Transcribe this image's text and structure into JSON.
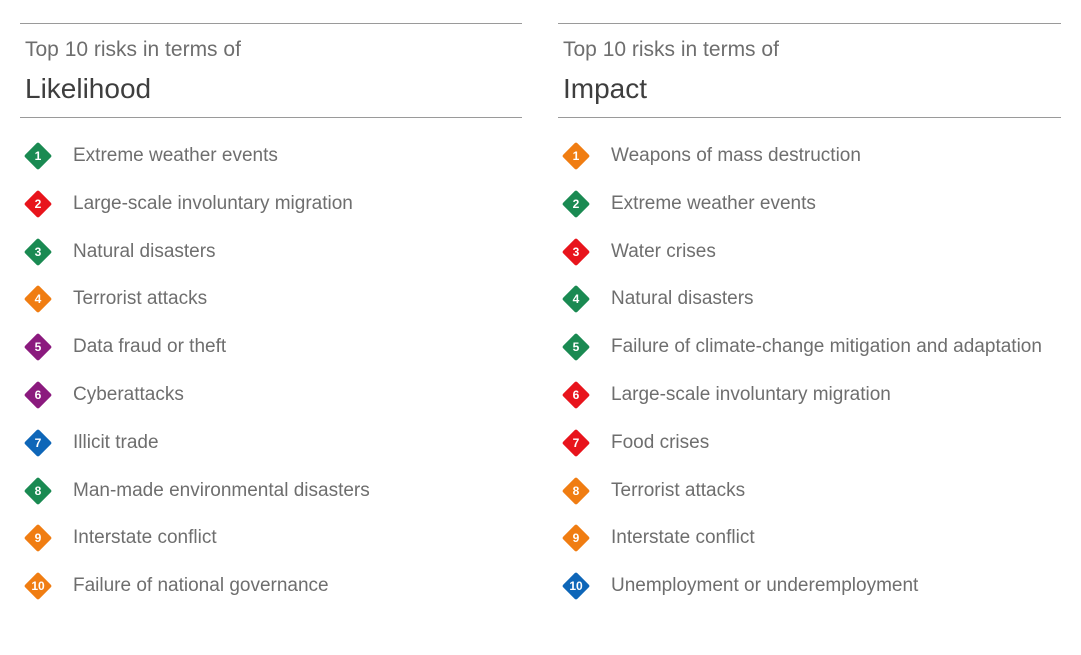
{
  "colors": {
    "green": "#1a8a52",
    "red": "#e8141c",
    "orange": "#f07d12",
    "purple": "#8b1a7e",
    "blue": "#0e66b8"
  },
  "likelihood": {
    "subtitle": "Top 10 risks in terms of",
    "title": "Likelihood",
    "items": [
      {
        "rank": "1",
        "label": "Extreme weather events",
        "color": "#1a8a52"
      },
      {
        "rank": "2",
        "label": "Large-scale involuntary migration",
        "color": "#e8141c"
      },
      {
        "rank": "3",
        "label": "Natural disasters",
        "color": "#1a8a52"
      },
      {
        "rank": "4",
        "label": "Terrorist attacks",
        "color": "#f07d12"
      },
      {
        "rank": "5",
        "label": "Data fraud or theft",
        "color": "#8b1a7e"
      },
      {
        "rank": "6",
        "label": "Cyberattacks",
        "color": "#8b1a7e"
      },
      {
        "rank": "7",
        "label": "Illicit trade",
        "color": "#0e66b8"
      },
      {
        "rank": "8",
        "label": "Man-made environmental disasters",
        "color": "#1a8a52"
      },
      {
        "rank": "9",
        "label": "Interstate conflict",
        "color": "#f07d12"
      },
      {
        "rank": "10",
        "label": "Failure of national governance",
        "color": "#f07d12"
      }
    ]
  },
  "impact": {
    "subtitle": "Top 10 risks in terms of",
    "title": "Impact",
    "items": [
      {
        "rank": "1",
        "label": "Weapons of mass destruction",
        "color": "#f07d12"
      },
      {
        "rank": "2",
        "label": "Extreme weather events",
        "color": "#1a8a52"
      },
      {
        "rank": "3",
        "label": "Water crises",
        "color": "#e8141c"
      },
      {
        "rank": "4",
        "label": "Natural disasters",
        "color": "#1a8a52"
      },
      {
        "rank": "5",
        "label": "Failure of climate-change mitigation and adaptation",
        "color": "#1a8a52"
      },
      {
        "rank": "6",
        "label": "Large-scale involuntary migration",
        "color": "#e8141c"
      },
      {
        "rank": "7",
        "label": "Food crises",
        "color": "#e8141c"
      },
      {
        "rank": "8",
        "label": "Terrorist attacks",
        "color": "#f07d12"
      },
      {
        "rank": "9",
        "label": "Interstate conflict",
        "color": "#f07d12"
      },
      {
        "rank": "10",
        "label": "Unemployment or underemployment",
        "color": "#0e66b8"
      }
    ]
  }
}
